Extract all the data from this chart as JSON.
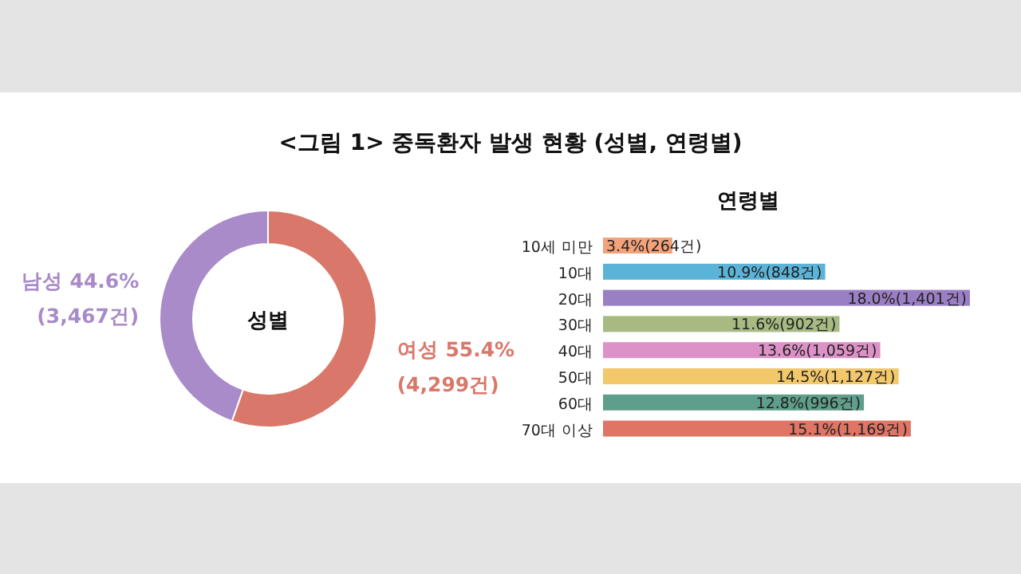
{
  "chart_data": [
    {
      "type": "donut",
      "title": "<그림 1> 중독환자 발생 현황 (성별, 연령별)",
      "annotations": [
        "성별"
      ],
      "categories": [
        "여성",
        "남성"
      ],
      "values": [
        55.4,
        44.6
      ],
      "value_labels": [
        "55.4%\n(4,299건)",
        "44.6%\n(3,467건)"
      ],
      "colors": [
        "#d9786a",
        "#a88bc8"
      ]
    },
    {
      "type": "bar",
      "orientation": "horizontal",
      "title": "연령별",
      "categories": [
        "10세 미만",
        "10대",
        "20대",
        "30대",
        "40대",
        "50대",
        "60대",
        "70대 이상"
      ],
      "values": [
        3.4,
        10.9,
        18.0,
        11.6,
        13.6,
        14.5,
        12.8,
        15.1
      ],
      "value_labels": [
        "3.4%(264건)",
        "10.9%(848건)",
        "18.0%(1,401건)",
        "11.6%(902건)",
        "13.6%(1,059건)",
        "14.5%(1,127건)",
        "12.8%(996건)",
        "15.1%(1,169건)"
      ],
      "colors": [
        "#f4a27a",
        "#5bb4d8",
        "#9b7fc4",
        "#a6ba82",
        "#dc92c7",
        "#f2c86b",
        "#5f9e8a",
        "#df7565"
      ]
    }
  ]
}
